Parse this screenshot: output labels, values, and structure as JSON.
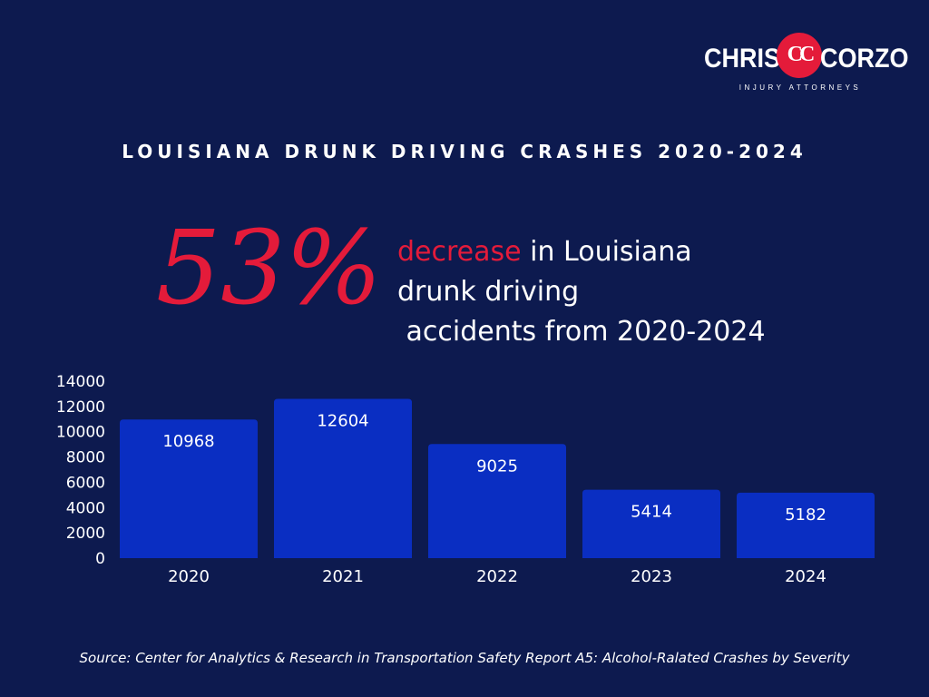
{
  "logo": {
    "left_text": "CHRIS",
    "monogram": "CC",
    "right_text": "CORZO",
    "subtitle": "INJURY ATTORNEYS"
  },
  "headline": "LOUISIANA DRUNK DRIVING CRASHES 2020-2024",
  "stat": {
    "percent": "53%",
    "accent_word": "decrease",
    "line1_rest": " in Louisiana",
    "line2": "drunk driving",
    "line3": " accidents from 2020-2024"
  },
  "source": "Source: Center for Analytics & Research in Transportation Safety Report A5: Alcohol-Ralated Crashes by Severity",
  "colors": {
    "background": "#0d1a4f",
    "bar": "#0a2ec2",
    "accent": "#e41b3a",
    "text": "#ffffff"
  },
  "chart_data": {
    "type": "bar",
    "categories": [
      "2020",
      "2021",
      "2022",
      "2023",
      "2024"
    ],
    "values": [
      10968,
      12604,
      9025,
      5414,
      5182
    ],
    "data_labels": [
      "10968",
      "12604",
      "9025",
      "5414",
      "5182"
    ],
    "ylim": [
      0,
      14000
    ],
    "yticks": [
      0,
      2000,
      4000,
      6000,
      8000,
      10000,
      12000,
      14000
    ],
    "title": "",
    "xlabel": "",
    "ylabel": "",
    "grid": false,
    "legend": "none"
  }
}
